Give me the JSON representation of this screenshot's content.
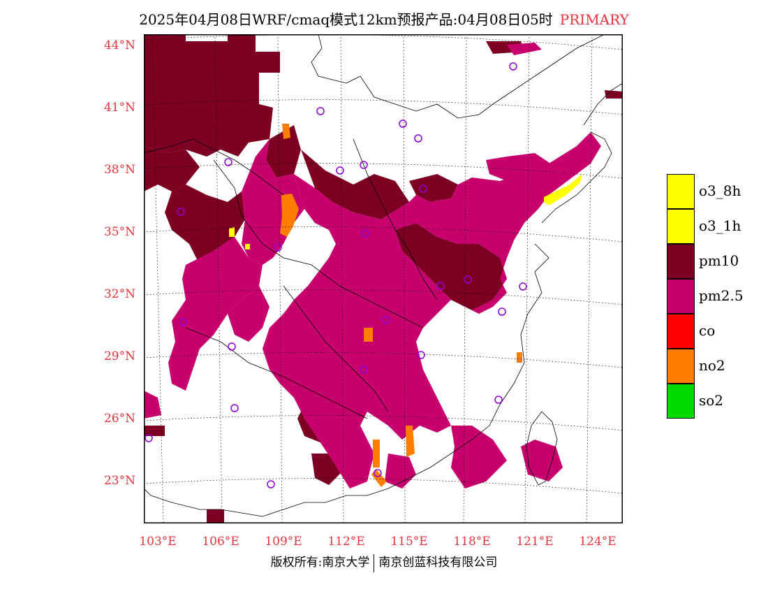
{
  "title": {
    "main": "2025年04月08日WRF/cmaq模式12km预报产品:04月08日05时",
    "tag": "PRIMARY"
  },
  "axes": {
    "lat_labels": [
      "44°N",
      "41°N",
      "38°N",
      "35°N",
      "32°N",
      "29°N",
      "26°N",
      "23°N"
    ],
    "lon_labels": [
      "103°E",
      "106°E",
      "109°E",
      "112°E",
      "115°E",
      "118°E",
      "121°E",
      "124°E"
    ]
  },
  "legend": [
    {
      "label": "o3_8h",
      "color": "#ffff00"
    },
    {
      "label": "o3_1h",
      "color": "#ffff00"
    },
    {
      "label": "pm10",
      "color": "#7d0023"
    },
    {
      "label": "pm2.5",
      "color": "#c8006e"
    },
    {
      "label": "co",
      "color": "#ff0000"
    },
    {
      "label": "no2",
      "color": "#ff7d00"
    },
    {
      "label": "so2",
      "color": "#00dc00"
    }
  ],
  "footer": {
    "left": "版权所有:南京大学",
    "right": "南京创蓝科技有限公司"
  },
  "colors": {
    "pm10": "#7d0023",
    "pm25": "#c8006e",
    "no2": "#ff7d00",
    "o3": "#ffff00",
    "label_red": "#e8323c",
    "city_marker": "#8c00d4"
  }
}
